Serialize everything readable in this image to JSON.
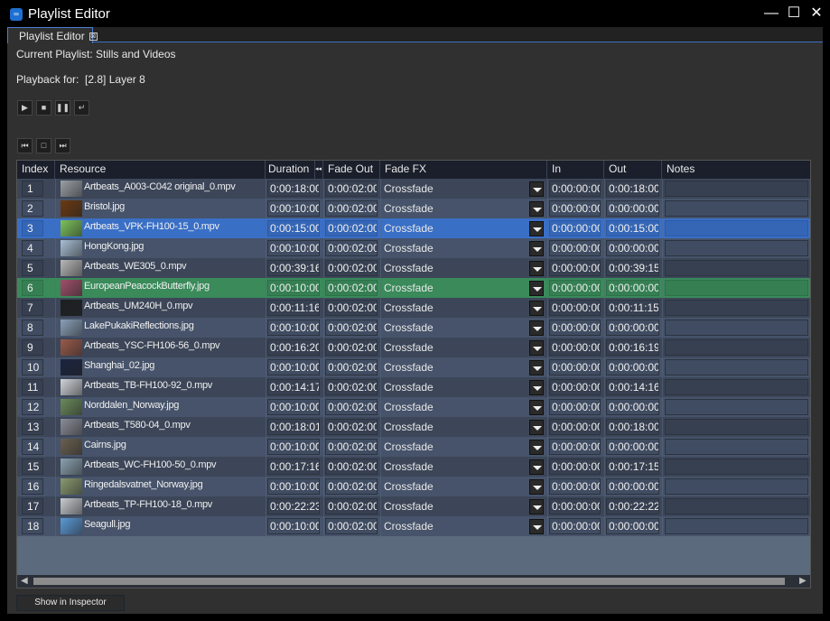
{
  "window": {
    "title": "Playlist Editor",
    "minimize": "—",
    "maximize": "☐",
    "close": "✕"
  },
  "tab": {
    "label": "Playlist Editor",
    "close": "⊠"
  },
  "current_playlist": "Current Playlist: Stills and Videos",
  "playback_for": "Playback for:  [2.8] Layer 8",
  "transport": {
    "play": "▶",
    "stop": "■",
    "pause": "❚❚",
    "loop": "↵"
  },
  "nav": {
    "prev": "⏮",
    "stop": "□",
    "next": "⏭"
  },
  "columns": {
    "index": "Index",
    "resource": "Resource",
    "duration": "Duration",
    "collapse": "◂◂",
    "fade_out": "Fade Out",
    "fade_fx": "Fade FX",
    "in": "In",
    "out": "Out",
    "notes": "Notes"
  },
  "colors": {
    "selected": "#3a6fc6",
    "playing": "#3a8a5a"
  },
  "rows": [
    {
      "index": "1",
      "resource": "Artbeats_A003-C042 original_0.mpv",
      "duration": "0:00:18:00",
      "fade_out": "0:00:02:00",
      "fade_fx": "Crossfade",
      "in": "0:00:00:00",
      "out": "0:00:18:00",
      "notes": "",
      "thumb": "#9aa0a6"
    },
    {
      "index": "2",
      "resource": "Bristol.jpg",
      "duration": "0:00:10:00",
      "fade_out": "0:00:02:00",
      "fade_fx": "Crossfade",
      "in": "0:00:00:00",
      "out": "0:00:00:00",
      "notes": "",
      "thumb": "#6b3a12"
    },
    {
      "index": "3",
      "resource": "Artbeats_VPK-FH100-15_0.mpv",
      "duration": "0:00:15:00",
      "fade_out": "0:00:02:00",
      "fade_fx": "Crossfade",
      "in": "0:00:00:00",
      "out": "0:00:15:00",
      "notes": "",
      "thumb": "#7cc35a",
      "state": "selected"
    },
    {
      "index": "4",
      "resource": "HongKong.jpg",
      "duration": "0:00:10:00",
      "fade_out": "0:00:02:00",
      "fade_fx": "Crossfade",
      "in": "0:00:00:00",
      "out": "0:00:00:00",
      "notes": "",
      "thumb": "#a8bfd4"
    },
    {
      "index": "5",
      "resource": "Artbeats_WE305_0.mpv",
      "duration": "0:00:39:16",
      "fade_out": "0:00:02:00",
      "fade_fx": "Crossfade",
      "in": "0:00:00:00",
      "out": "0:00:39:15",
      "notes": "",
      "thumb": "#b8b8b8"
    },
    {
      "index": "6",
      "resource": "EuropeanPeacockButterfly.jpg",
      "duration": "0:00:10:00",
      "fade_out": "0:00:02:00",
      "fade_fx": "Crossfade",
      "in": "0:00:00:00",
      "out": "0:00:00:00",
      "notes": "",
      "thumb": "#a0506a",
      "state": "playing"
    },
    {
      "index": "7",
      "resource": "Artbeats_UM240H_0.mpv",
      "duration": "0:00:11:16",
      "fade_out": "0:00:02:00",
      "fade_fx": "Crossfade",
      "in": "0:00:00:00",
      "out": "0:00:11:15",
      "notes": "",
      "thumb": "#1c1f22"
    },
    {
      "index": "8",
      "resource": "LakePukakiReflections.jpg",
      "duration": "0:00:10:00",
      "fade_out": "0:00:02:00",
      "fade_fx": "Crossfade",
      "in": "0:00:00:00",
      "out": "0:00:00:00",
      "notes": "",
      "thumb": "#8aa0b8"
    },
    {
      "index": "9",
      "resource": "Artbeats_YSC-FH106-56_0.mpv",
      "duration": "0:00:16:20",
      "fade_out": "0:00:02:00",
      "fade_fx": "Crossfade",
      "in": "0:00:00:00",
      "out": "0:00:16:19",
      "notes": "",
      "thumb": "#9a5a4a"
    },
    {
      "index": "10",
      "resource": "Shanghai_02.jpg",
      "duration": "0:00:10:00",
      "fade_out": "0:00:02:00",
      "fade_fx": "Crossfade",
      "in": "0:00:00:00",
      "out": "0:00:00:00",
      "notes": "",
      "thumb": "#1a2440"
    },
    {
      "index": "11",
      "resource": "Artbeats_TB-FH100-92_0.mpv",
      "duration": "0:00:14:17",
      "fade_out": "0:00:02:00",
      "fade_fx": "Crossfade",
      "in": "0:00:00:00",
      "out": "0:00:14:16",
      "notes": "",
      "thumb": "#d0d4da"
    },
    {
      "index": "12",
      "resource": "Norddalen_Norway.jpg",
      "duration": "0:00:10:00",
      "fade_out": "0:00:02:00",
      "fade_fx": "Crossfade",
      "in": "0:00:00:00",
      "out": "0:00:00:00",
      "notes": "",
      "thumb": "#6a8a5a"
    },
    {
      "index": "13",
      "resource": "Artbeats_T580-04_0.mpv",
      "duration": "0:00:18:01",
      "fade_out": "0:00:02:00",
      "fade_fx": "Crossfade",
      "in": "0:00:00:00",
      "out": "0:00:18:00",
      "notes": "",
      "thumb": "#8a8e98"
    },
    {
      "index": "14",
      "resource": "Cairns.jpg",
      "duration": "0:00:10:00",
      "fade_out": "0:00:02:00",
      "fade_fx": "Crossfade",
      "in": "0:00:00:00",
      "out": "0:00:00:00",
      "notes": "",
      "thumb": "#6a6050"
    },
    {
      "index": "15",
      "resource": "Artbeats_WC-FH100-50_0.mpv",
      "duration": "0:00:17:16",
      "fade_out": "0:00:02:00",
      "fade_fx": "Crossfade",
      "in": "0:00:00:00",
      "out": "0:00:17:15",
      "notes": "",
      "thumb": "#8aa2b0"
    },
    {
      "index": "16",
      "resource": "Ringedalsvatnet_Norway.jpg",
      "duration": "0:00:10:00",
      "fade_out": "0:00:02:00",
      "fade_fx": "Crossfade",
      "in": "0:00:00:00",
      "out": "0:00:00:00",
      "notes": "",
      "thumb": "#8a9a70"
    },
    {
      "index": "17",
      "resource": "Artbeats_TP-FH100-18_0.mpv",
      "duration": "0:00:22:23",
      "fade_out": "0:00:02:00",
      "fade_fx": "Crossfade",
      "in": "0:00:00:00",
      "out": "0:00:22:22",
      "notes": "",
      "thumb": "#c8ccd0"
    },
    {
      "index": "18",
      "resource": "Seagull.jpg",
      "duration": "0:00:10:00",
      "fade_out": "0:00:02:00",
      "fade_fx": "Crossfade",
      "in": "0:00:00:00",
      "out": "0:00:00:00",
      "notes": "",
      "thumb": "#5a9ad8"
    }
  ],
  "footer": {
    "show_in_inspector": "Show in Inspector"
  }
}
